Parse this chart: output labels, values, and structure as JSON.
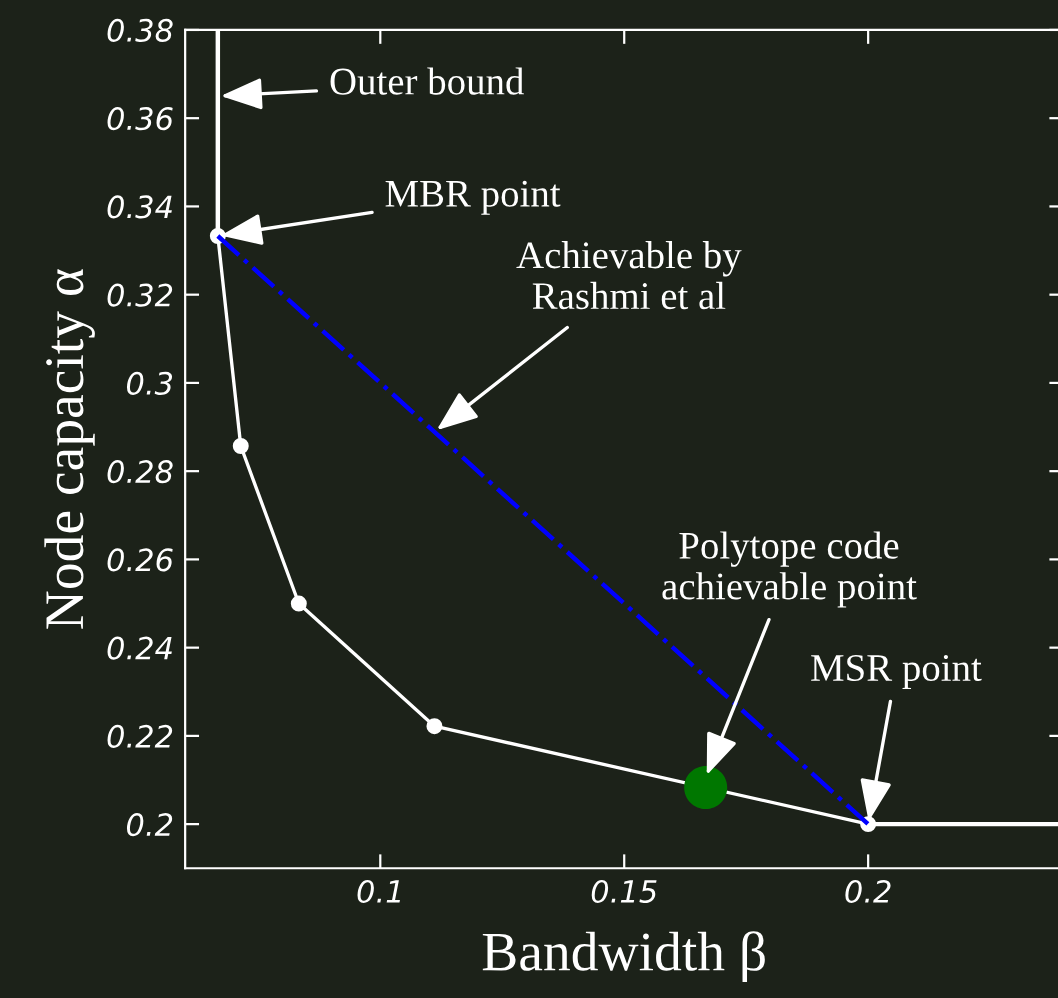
{
  "chart_data": {
    "type": "line",
    "xlabel": "Bandwidth β",
    "ylabel": "Node capacity α",
    "xlim": [
      0.06,
      0.24
    ],
    "ylim": [
      0.19,
      0.38
    ],
    "xticks": [
      0.1,
      0.15,
      0.2
    ],
    "yticks": [
      0.2,
      0.22,
      0.24,
      0.26,
      0.28,
      0.3,
      0.32,
      0.34,
      0.36,
      0.38
    ],
    "grid": false,
    "legend": false,
    "series": [
      {
        "color": "#ffffff",
        "marker": "circle",
        "line_style": "solid",
        "x": [
          0.0667,
          0.0714,
          0.0833,
          0.1111,
          0.2
        ],
        "values": [
          0.3333,
          0.2857,
          0.25,
          0.2222,
          0.2
        ]
      },
      {
        "color": "#ffffff",
        "marker": "none",
        "line_style": "solid",
        "x": [
          0.0667,
          0.0667
        ],
        "values": [
          0.3333,
          0.38
        ]
      },
      {
        "color": "#ffffff",
        "marker": "none",
        "line_style": "solid",
        "x": [
          0.2,
          0.24
        ],
        "values": [
          0.2,
          0.2
        ]
      },
      {
        "color": "#0000ff",
        "marker": "none",
        "line_style": "dashdot",
        "x": [
          0.0667,
          0.2
        ],
        "values": [
          0.3333,
          0.2
        ]
      },
      {
        "type": "scatter",
        "color": "#007700",
        "marker": "circle",
        "x": [
          0.1667
        ],
        "values": [
          0.2083
        ]
      }
    ],
    "annotations": [
      {
        "text": "Outer bound",
        "x": 0.0667,
        "y": 0.365
      },
      {
        "text": "MBR point",
        "x": 0.0667,
        "y": 0.3333
      },
      {
        "text": "Achievable by\nRashmi et al",
        "x": 0.1111,
        "y": 0.2889
      },
      {
        "text": "Polytope code\nachievable point",
        "x": 0.1667,
        "y": 0.2105
      },
      {
        "text": "MSR point",
        "x": 0.2,
        "y": 0.2
      }
    ]
  }
}
